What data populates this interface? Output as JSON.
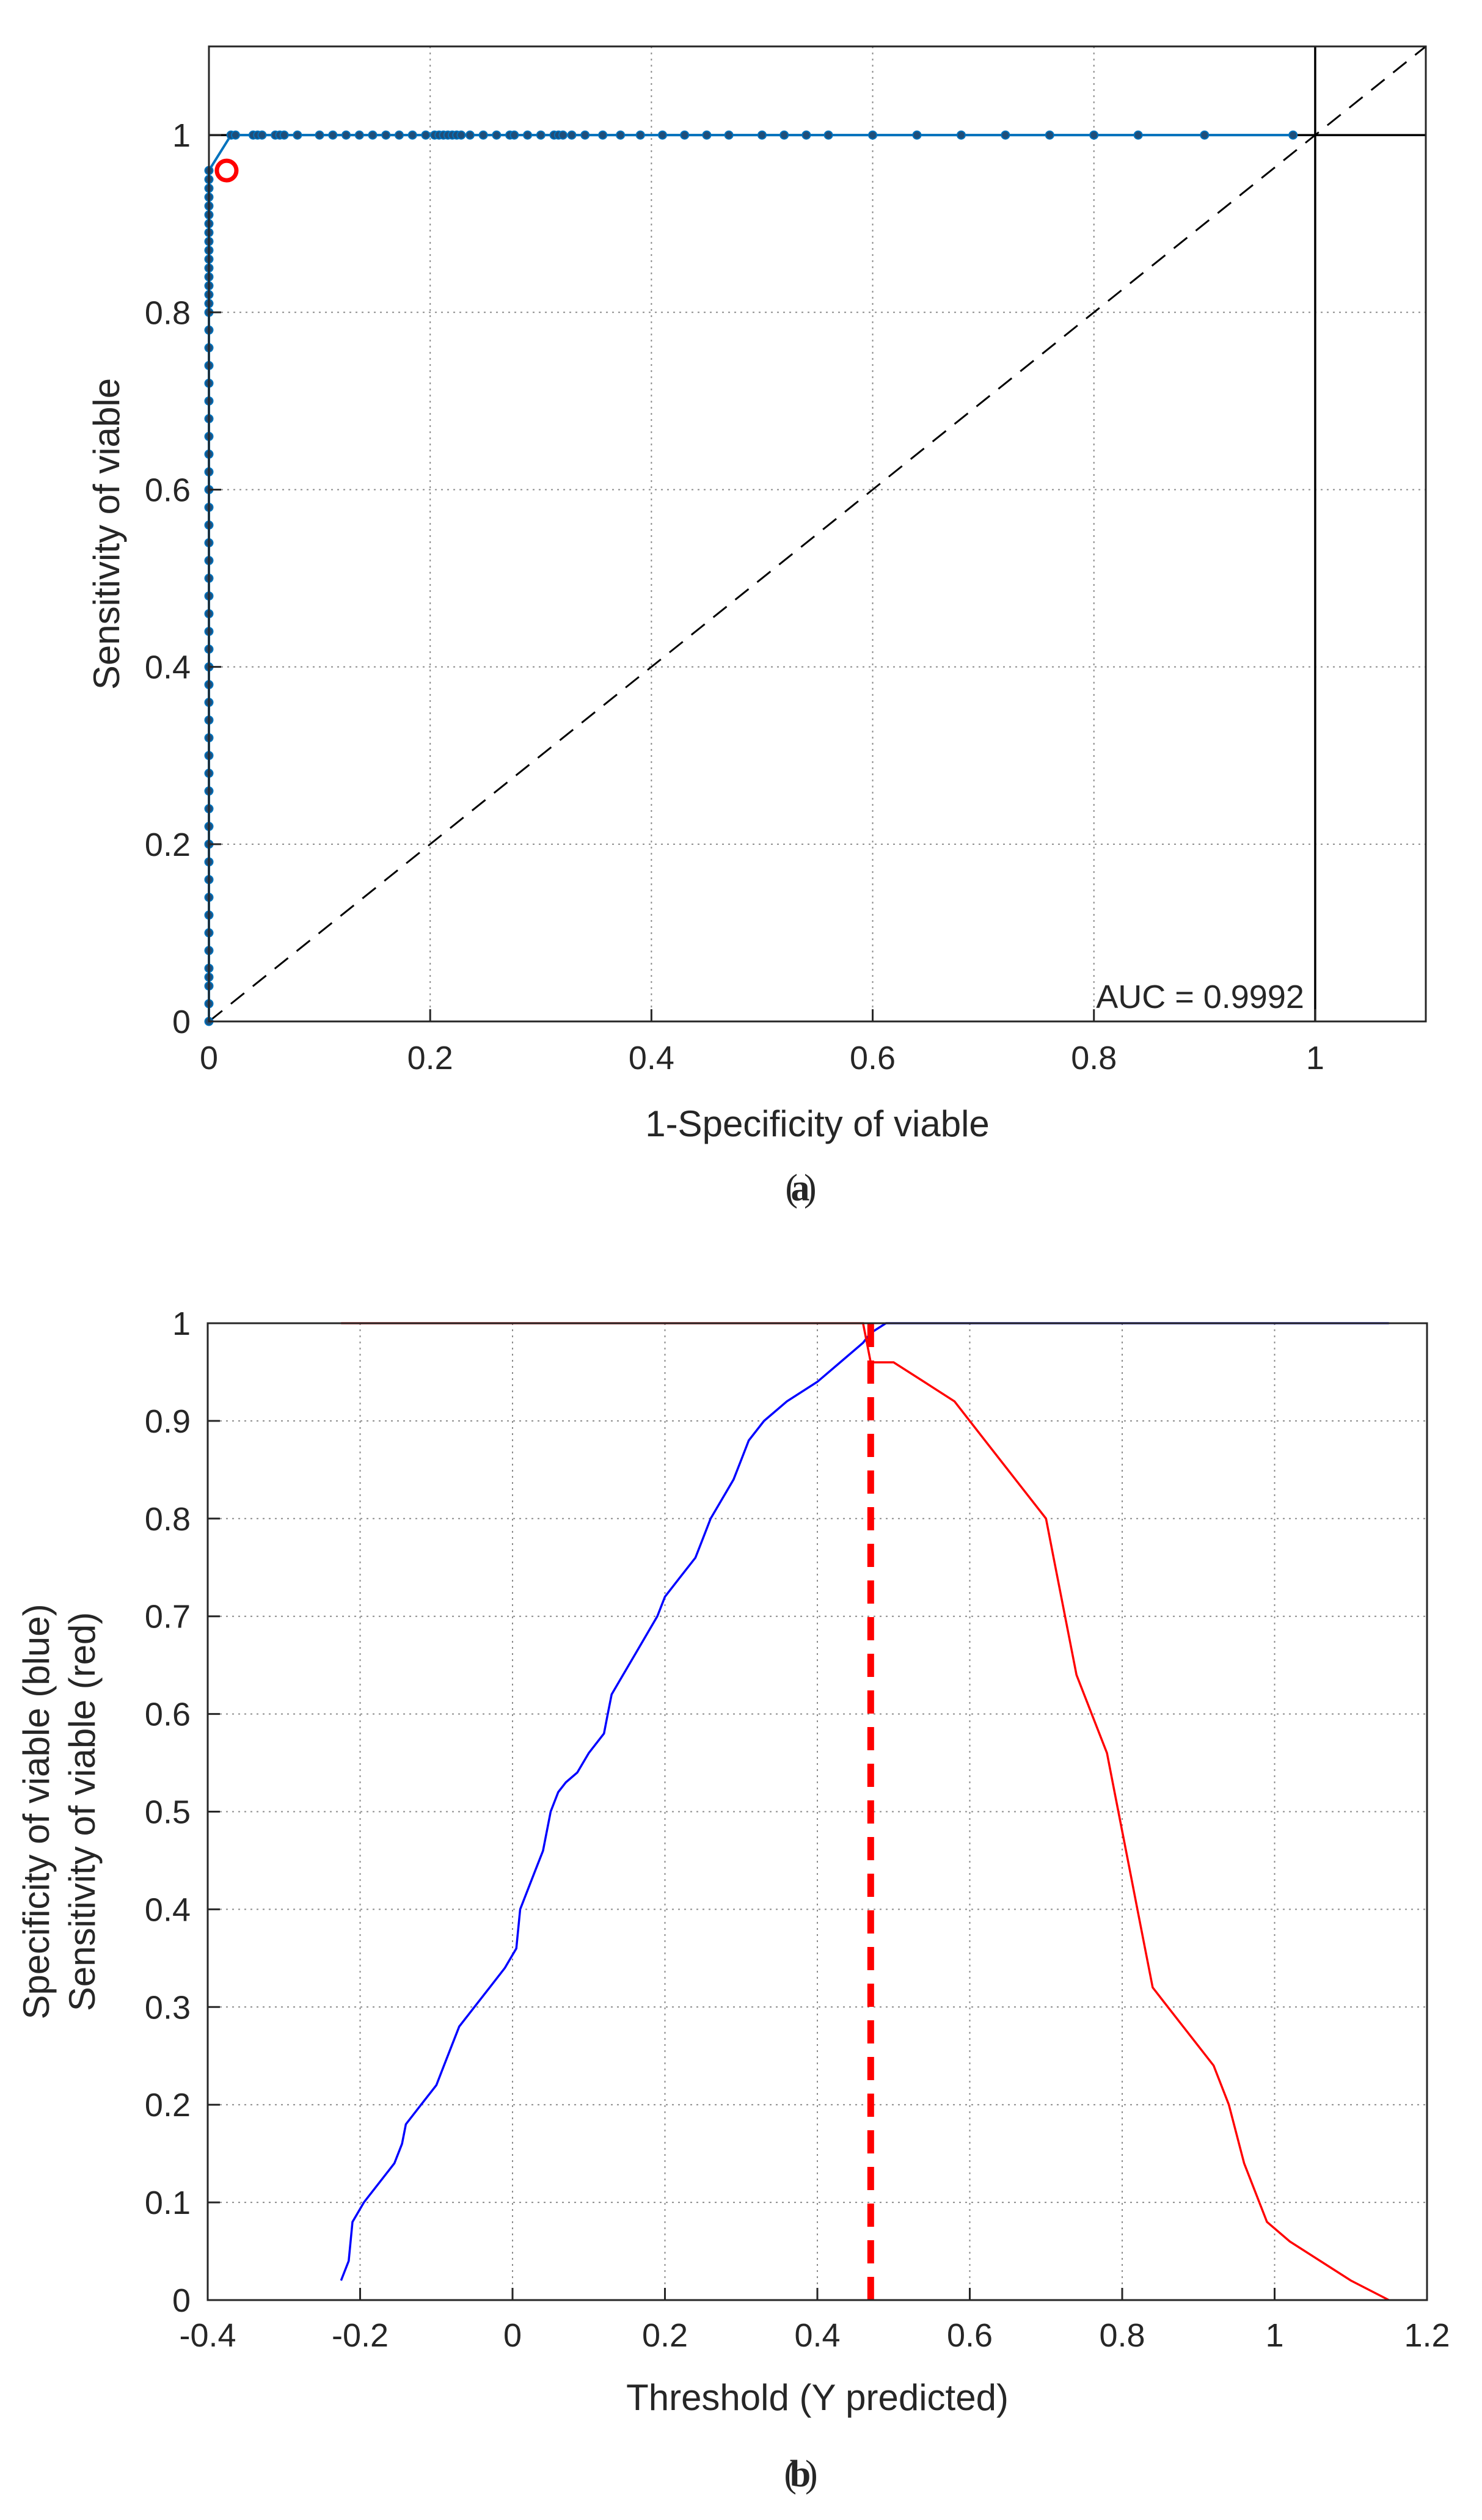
{
  "chart_data": [
    {
      "panel_label": "a",
      "type": "line",
      "title": "",
      "xlabel": "1-Specificity of viable",
      "ylabel": "Sensitivity of viable",
      "xlim": [
        0,
        1.1
      ],
      "ylim": [
        0,
        1.1
      ],
      "xticks": [
        0,
        0.2,
        0.4,
        0.6,
        0.8,
        1
      ],
      "yticks": [
        0,
        0.2,
        0.4,
        0.6,
        0.8,
        1
      ],
      "xtick_labels": [
        "0",
        "0.2",
        "0.4",
        "0.6",
        "0.8",
        "1"
      ],
      "ytick_labels": [
        "0",
        "0.2",
        "0.4",
        "0.6",
        "0.8",
        "1"
      ],
      "grid": true,
      "annotation": "AUC = 0.9992",
      "series": [
        {
          "name": "ROC curve",
          "color": "#0072bd",
          "marker": "dot",
          "x": [
            0,
            0,
            0,
            0,
            0,
            0,
            0,
            0,
            0,
            0,
            0,
            0,
            0,
            0,
            0,
            0,
            0,
            0,
            0,
            0,
            0,
            0,
            0,
            0,
            0,
            0,
            0,
            0,
            0,
            0,
            0,
            0,
            0,
            0,
            0,
            0,
            0,
            0,
            0,
            0,
            0,
            0,
            0,
            0,
            0,
            0,
            0,
            0,
            0,
            0,
            0,
            0,
            0,
            0,
            0,
            0,
            0,
            0,
            0.02,
            0.024,
            0.04,
            0.044,
            0.048,
            0.06,
            0.064,
            0.068,
            0.08,
            0.1,
            0.112,
            0.124,
            0.136,
            0.148,
            0.16,
            0.172,
            0.184,
            0.196,
            0.204,
            0.208,
            0.212,
            0.216,
            0.22,
            0.224,
            0.228,
            0.236,
            0.248,
            0.26,
            0.272,
            0.276,
            0.288,
            0.3,
            0.312,
            0.316,
            0.32,
            0.328,
            0.34,
            0.356,
            0.372,
            0.39,
            0.41,
            0.43,
            0.45,
            0.47,
            0.5,
            0.52,
            0.54,
            0.56,
            0.6,
            0.64,
            0.68,
            0.72,
            0.76,
            0.8,
            0.84,
            0.9,
            0.98
          ],
          "y": [
            0,
            0.02,
            0.04,
            0.05,
            0.06,
            0.08,
            0.1,
            0.12,
            0.14,
            0.16,
            0.18,
            0.2,
            0.22,
            0.24,
            0.26,
            0.28,
            0.3,
            0.32,
            0.34,
            0.36,
            0.38,
            0.4,
            0.42,
            0.44,
            0.46,
            0.48,
            0.5,
            0.52,
            0.54,
            0.56,
            0.58,
            0.6,
            0.62,
            0.64,
            0.66,
            0.68,
            0.7,
            0.72,
            0.74,
            0.76,
            0.78,
            0.8,
            0.81,
            0.82,
            0.83,
            0.84,
            0.85,
            0.86,
            0.87,
            0.88,
            0.89,
            0.9,
            0.91,
            0.92,
            0.93,
            0.94,
            0.95,
            0.96,
            1,
            1,
            1,
            1,
            1,
            1,
            1,
            1,
            1,
            1,
            1,
            1,
            1,
            1,
            1,
            1,
            1,
            1,
            1,
            1,
            1,
            1,
            1,
            1,
            1,
            1,
            1,
            1,
            1,
            1,
            1,
            1,
            1,
            1,
            1,
            1,
            1,
            1,
            1,
            1,
            1,
            1,
            1,
            1,
            1,
            1,
            1,
            1,
            1,
            1,
            1,
            1,
            1,
            1,
            1,
            1,
            1
          ]
        },
        {
          "name": "chance diagonal",
          "color": "#000000",
          "style": "dashed",
          "x": [
            0,
            1.1
          ],
          "y": [
            0,
            1.1
          ]
        }
      ],
      "optimal_point": {
        "x": 0.016,
        "y": 0.96,
        "color": "#ff0000"
      },
      "reference_lines": {
        "x": 1,
        "y": 1
      }
    },
    {
      "panel_label": "b",
      "type": "line",
      "title": "",
      "xlabel": "Threshold (Y predicted)",
      "ylabel_lines": [
        "Specificity of viable (blue)",
        "Sensitivity of viable (red)"
      ],
      "xlim": [
        -0.4,
        1.2
      ],
      "ylim": [
        0,
        1
      ],
      "xticks": [
        -0.4,
        -0.2,
        0,
        0.2,
        0.4,
        0.6,
        0.8,
        1,
        1.2
      ],
      "yticks": [
        0,
        0.1,
        0.2,
        0.3,
        0.4,
        0.5,
        0.6,
        0.7,
        0.8,
        0.9,
        1
      ],
      "xtick_labels": [
        "-0.4",
        "-0.2",
        "0",
        "0.2",
        "0.4",
        "0.6",
        "0.8",
        "1",
        "1.2"
      ],
      "ytick_labels": [
        "0",
        "0.1",
        "0.2",
        "0.3",
        "0.4",
        "0.5",
        "0.6",
        "0.7",
        "0.8",
        "0.9",
        "1"
      ],
      "grid": true,
      "series": [
        {
          "name": "Specificity of viable",
          "color": "#0000ff",
          "x": [
            -0.225,
            -0.215,
            -0.21,
            -0.195,
            -0.175,
            -0.155,
            -0.145,
            -0.14,
            -0.12,
            -0.1,
            -0.09,
            -0.07,
            -0.05,
            -0.03,
            -0.01,
            0.005,
            0.01,
            0.03,
            0.04,
            0.05,
            0.06,
            0.07,
            0.085,
            0.1,
            0.12,
            0.125,
            0.13,
            0.145,
            0.16,
            0.175,
            0.19,
            0.2,
            0.22,
            0.24,
            0.25,
            0.26,
            0.275,
            0.29,
            0.3,
            0.31,
            0.33,
            0.36,
            0.4,
            0.43,
            0.46,
            0.47,
            0.49,
            0.5,
            1.15
          ],
          "y": [
            0.02,
            0.04,
            0.08,
            0.1,
            0.12,
            0.14,
            0.16,
            0.18,
            0.2,
            0.22,
            0.24,
            0.28,
            0.3,
            0.32,
            0.34,
            0.36,
            0.4,
            0.44,
            0.46,
            0.5,
            0.52,
            0.53,
            0.54,
            0.56,
            0.58,
            0.6,
            0.62,
            0.64,
            0.66,
            0.68,
            0.7,
            0.72,
            0.74,
            0.76,
            0.78,
            0.8,
            0.82,
            0.84,
            0.86,
            0.88,
            0.9,
            0.92,
            0.94,
            0.96,
            0.98,
            0.99,
            1,
            1,
            1
          ]
        },
        {
          "name": "Sensitivity of viable",
          "color": "#ff0000",
          "x": [
            -0.225,
            0.46,
            0.465,
            0.47,
            0.5,
            0.54,
            0.58,
            0.62,
            0.66,
            0.7,
            0.71,
            0.72,
            0.73,
            0.74,
            0.76,
            0.78,
            0.79,
            0.8,
            0.81,
            0.82,
            0.83,
            0.84,
            0.86,
            0.88,
            0.9,
            0.92,
            0.94,
            0.96,
            0.99,
            1.02,
            1.06,
            1.1,
            1.15
          ],
          "y": [
            1,
            1,
            0.98,
            0.96,
            0.96,
            0.94,
            0.92,
            0.88,
            0.84,
            0.8,
            0.76,
            0.72,
            0.68,
            0.64,
            0.6,
            0.56,
            0.52,
            0.48,
            0.44,
            0.4,
            0.36,
            0.32,
            0.3,
            0.28,
            0.26,
            0.24,
            0.2,
            0.14,
            0.08,
            0.06,
            0.04,
            0.02,
            0
          ]
        }
      ],
      "optimal_threshold": {
        "x": 0.47,
        "color": "#ff0000",
        "style": "dashed"
      }
    }
  ]
}
